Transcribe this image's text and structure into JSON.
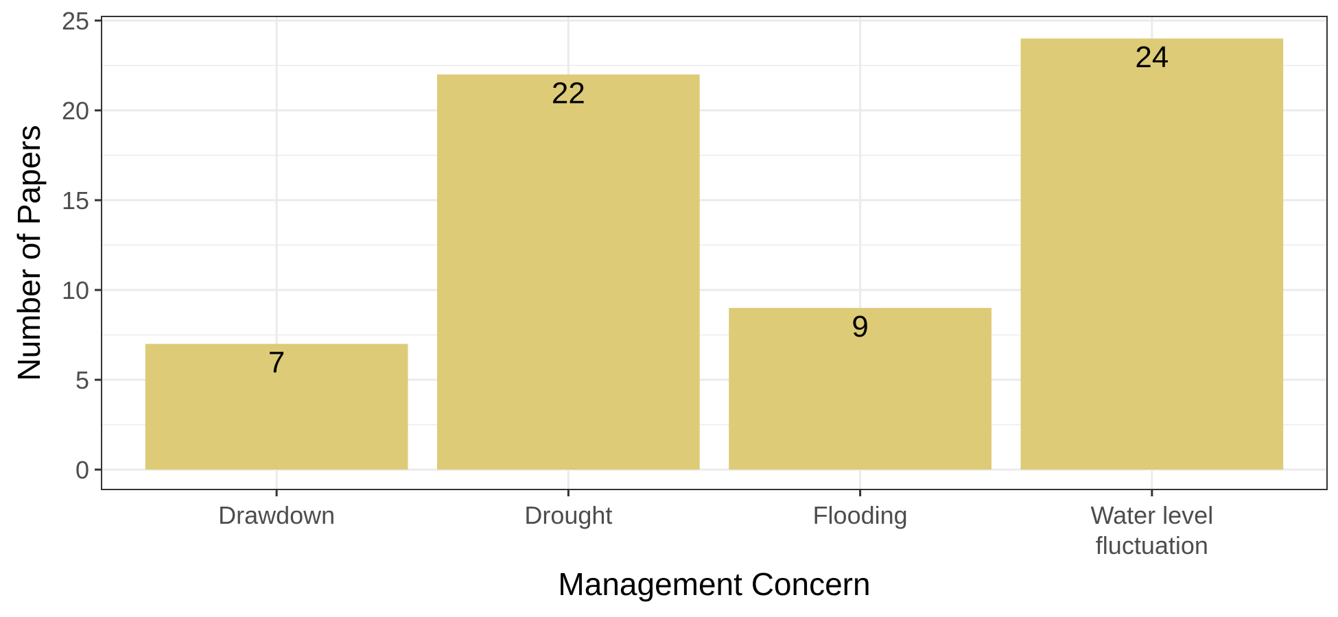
{
  "chart_data": {
    "type": "bar",
    "categories": [
      "Drawdown",
      "Drought",
      "Flooding",
      "Water level\nfluctuation"
    ],
    "values": [
      7,
      22,
      9,
      24
    ],
    "data_labels": [
      "7",
      "22",
      "9",
      "24"
    ],
    "title": "",
    "xlabel": "Management Concern",
    "ylabel": "Number of Papers",
    "ylim": [
      0,
      25
    ],
    "yticks": [
      0,
      5,
      10,
      15,
      20,
      25
    ],
    "grid": true,
    "legend": "none",
    "bar_color": "#DDCB77"
  }
}
